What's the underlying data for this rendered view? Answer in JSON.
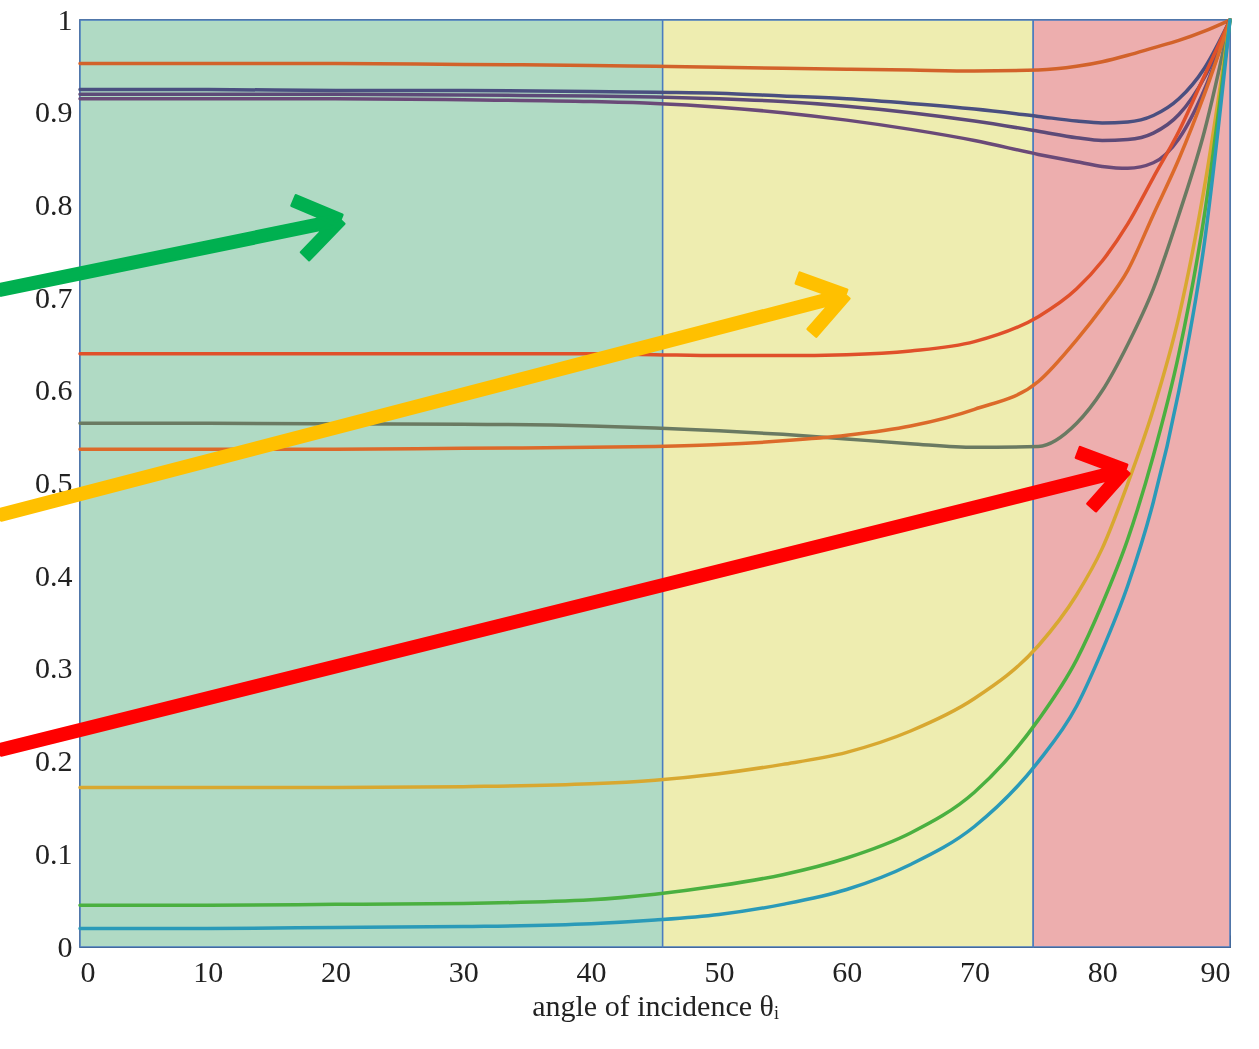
{
  "chart_data": {
    "type": "line",
    "xlabel": "angle of incidence θᵢ",
    "xlim": [
      0,
      90
    ],
    "ylim": [
      0,
      1
    ],
    "xticks": [
      0,
      10,
      20,
      30,
      40,
      50,
      60,
      70,
      80,
      90
    ],
    "yticks": [
      0,
      0.1,
      0.2,
      0.3,
      0.4,
      0.5,
      0.6,
      0.7,
      0.8,
      0.9,
      1
    ],
    "x": [
      0,
      10,
      20,
      30,
      40,
      45,
      50,
      55,
      60,
      65,
      70,
      75,
      78,
      80,
      82,
      84,
      86,
      88,
      90
    ],
    "bands": [
      {
        "axis": "x",
        "from": 0,
        "to": 45.6,
        "color": "#b0dac4"
      },
      {
        "axis": "x",
        "from": 45.6,
        "to": 74.6,
        "color": "#eeedb0"
      },
      {
        "axis": "x",
        "from": 74.6,
        "to": 90,
        "color": "#edaeae"
      }
    ],
    "series": [
      {
        "color": "#d2622a",
        "values": [
          0.953,
          0.953,
          0.953,
          0.952,
          0.951,
          0.95,
          0.949,
          0.948,
          0.947,
          0.946,
          0.945,
          0.946,
          0.95,
          0.955,
          0.962,
          0.97,
          0.978,
          0.988,
          1
        ]
      },
      {
        "color": "#4a4f80",
        "values": [
          0.925,
          0.925,
          0.924,
          0.924,
          0.923,
          0.922,
          0.921,
          0.918,
          0.915,
          0.91,
          0.904,
          0.896,
          0.891,
          0.889,
          0.89,
          0.897,
          0.915,
          0.948,
          1
        ]
      },
      {
        "color": "#5d4a78",
        "values": [
          0.92,
          0.92,
          0.92,
          0.919,
          0.918,
          0.917,
          0.915,
          0.912,
          0.907,
          0.9,
          0.891,
          0.88,
          0.873,
          0.87,
          0.871,
          0.878,
          0.898,
          0.938,
          1
        ]
      },
      {
        "color": "#6a4a78",
        "values": [
          0.915,
          0.915,
          0.915,
          0.914,
          0.912,
          0.91,
          0.906,
          0.9,
          0.892,
          0.882,
          0.87,
          0.855,
          0.847,
          0.842,
          0.84,
          0.846,
          0.872,
          0.925,
          1
        ]
      },
      {
        "color": "#e0502a",
        "values": [
          0.64,
          0.64,
          0.64,
          0.64,
          0.64,
          0.639,
          0.638,
          0.638,
          0.639,
          0.643,
          0.653,
          0.68,
          0.71,
          0.74,
          0.78,
          0.83,
          0.88,
          0.94,
          1
        ]
      },
      {
        "color": "#6a7a62",
        "x": [
          0,
          10,
          30,
          40,
          45,
          50,
          55,
          60,
          65,
          70,
          75,
          78,
          80,
          82,
          84,
          86,
          88,
          90
        ],
        "values": [
          0.565,
          0.565,
          0.564,
          0.562,
          0.56,
          0.557,
          0.553,
          0.548,
          0.543,
          0.539,
          0.54,
          0.565,
          0.6,
          0.65,
          0.71,
          0.79,
          0.88,
          1
        ]
      },
      {
        "color": "#dc6a2a",
        "values": [
          0.537,
          0.537,
          0.537,
          0.538,
          0.539,
          0.54,
          0.542,
          0.546,
          0.552,
          0.562,
          0.58,
          0.61,
          0.655,
          0.69,
          0.73,
          0.79,
          0.85,
          0.92,
          1
        ]
      },
      {
        "color": "#d8a830",
        "values": [
          0.172,
          0.172,
          0.172,
          0.173,
          0.176,
          0.18,
          0.187,
          0.197,
          0.21,
          0.233,
          0.268,
          0.325,
          0.38,
          0.43,
          0.5,
          0.58,
          0.68,
          0.82,
          1
        ]
      },
      {
        "color": "#4ab040",
        "values": [
          0.045,
          0.045,
          0.046,
          0.047,
          0.051,
          0.057,
          0.066,
          0.078,
          0.096,
          0.123,
          0.167,
          0.245,
          0.31,
          0.37,
          0.44,
          0.53,
          0.64,
          0.79,
          1
        ]
      },
      {
        "color": "#2a9ab8",
        "values": [
          0.02,
          0.02,
          0.021,
          0.022,
          0.025,
          0.029,
          0.035,
          0.046,
          0.062,
          0.089,
          0.13,
          0.2,
          0.26,
          0.32,
          0.39,
          0.48,
          0.6,
          0.76,
          1
        ]
      }
    ]
  }
}
